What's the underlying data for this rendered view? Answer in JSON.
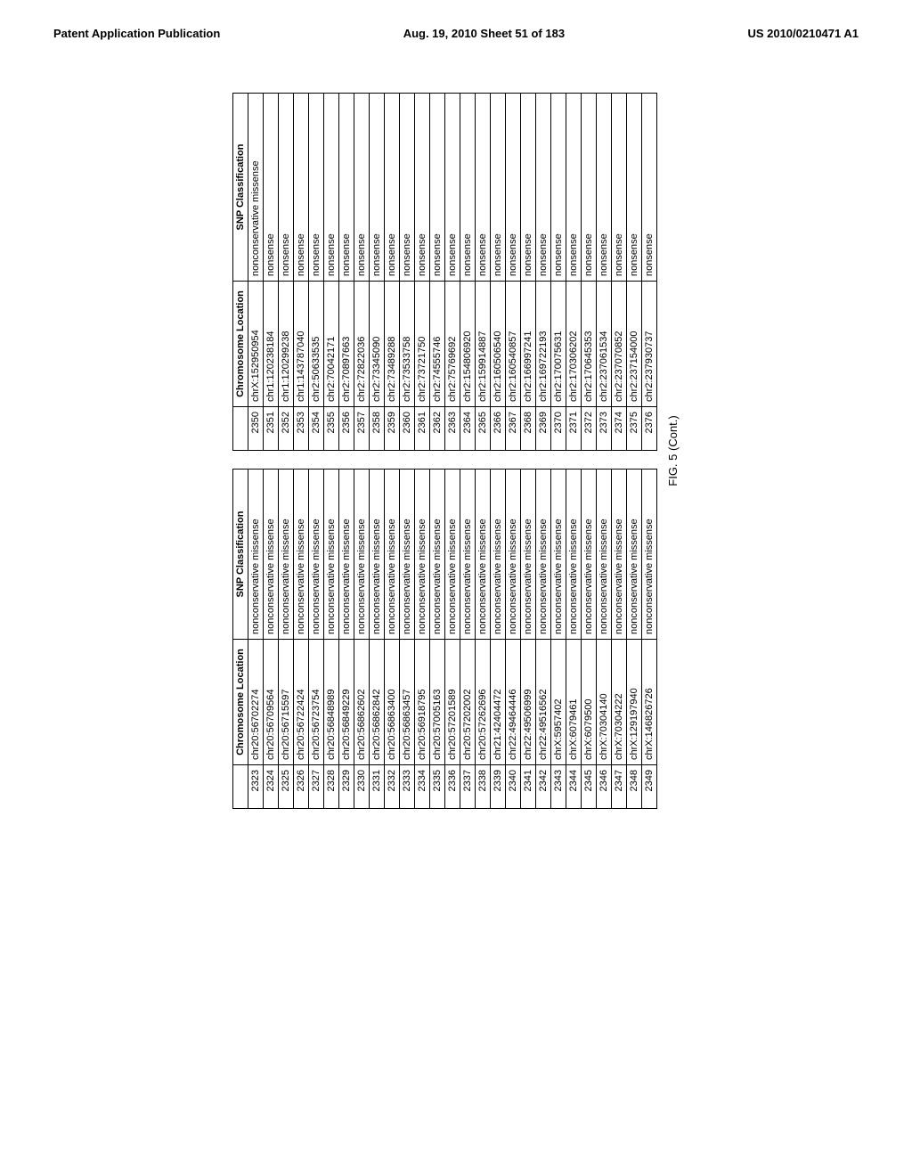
{
  "header": {
    "left": "Patent Application Publication",
    "center": "Aug. 19, 2010  Sheet 51 of 183",
    "right": "US 2010/0210471 A1"
  },
  "figure_caption": "FIG. 5 (Cont.)",
  "table_headers": {
    "index": "",
    "location": "Chromosome Location",
    "classification": "SNP Classification"
  },
  "table1": [
    {
      "idx": "2323",
      "loc": "chr20:56702274",
      "cls": "nonconservative missense"
    },
    {
      "idx": "2324",
      "loc": "chr20:56709564",
      "cls": "nonconservative missense"
    },
    {
      "idx": "2325",
      "loc": "chr20:56715597",
      "cls": "nonconservative missense"
    },
    {
      "idx": "2326",
      "loc": "chr20:56722424",
      "cls": "nonconservative missense"
    },
    {
      "idx": "2327",
      "loc": "chr20:56723754",
      "cls": "nonconservative missense"
    },
    {
      "idx": "2328",
      "loc": "chr20:56848989",
      "cls": "nonconservative missense"
    },
    {
      "idx": "2329",
      "loc": "chr20:56849229",
      "cls": "nonconservative missense"
    },
    {
      "idx": "2330",
      "loc": "chr20:56862602",
      "cls": "nonconservative missense"
    },
    {
      "idx": "2331",
      "loc": "chr20:56862842",
      "cls": "nonconservative missense"
    },
    {
      "idx": "2332",
      "loc": "chr20:56863400",
      "cls": "nonconservative missense"
    },
    {
      "idx": "2333",
      "loc": "chr20:56863457",
      "cls": "nonconservative missense"
    },
    {
      "idx": "2334",
      "loc": "chr20:56918795",
      "cls": "nonconservative missense"
    },
    {
      "idx": "2335",
      "loc": "chr20:57005163",
      "cls": "nonconservative missense"
    },
    {
      "idx": "2336",
      "loc": "chr20:57201589",
      "cls": "nonconservative missense"
    },
    {
      "idx": "2337",
      "loc": "chr20:57202002",
      "cls": "nonconservative missense"
    },
    {
      "idx": "2338",
      "loc": "chr20:57262696",
      "cls": "nonconservative missense"
    },
    {
      "idx": "2339",
      "loc": "chr21:42404472",
      "cls": "nonconservative missense"
    },
    {
      "idx": "2340",
      "loc": "chr22:49464446",
      "cls": "nonconservative missense"
    },
    {
      "idx": "2341",
      "loc": "chr22:49506999",
      "cls": "nonconservative missense"
    },
    {
      "idx": "2342",
      "loc": "chr22:49516562",
      "cls": "nonconservative missense"
    },
    {
      "idx": "2343",
      "loc": "chrX:5957402",
      "cls": "nonconservative missense"
    },
    {
      "idx": "2344",
      "loc": "chrX:6079461",
      "cls": "nonconservative missense"
    },
    {
      "idx": "2345",
      "loc": "chrX:6079500",
      "cls": "nonconservative missense"
    },
    {
      "idx": "2346",
      "loc": "chrX:70304140",
      "cls": "nonconservative missense"
    },
    {
      "idx": "2347",
      "loc": "chrX:70304222",
      "cls": "nonconservative missense"
    },
    {
      "idx": "2348",
      "loc": "chrX:129197940",
      "cls": "nonconservative missense"
    },
    {
      "idx": "2349",
      "loc": "chrX:146826726",
      "cls": "nonconservative missense"
    }
  ],
  "table2": [
    {
      "idx": "2350",
      "loc": "chrX:152950954",
      "cls": "nonconservative missense"
    },
    {
      "idx": "2351",
      "loc": "chr1:120238184",
      "cls": "nonsense"
    },
    {
      "idx": "2352",
      "loc": "chr1:120299238",
      "cls": "nonsense"
    },
    {
      "idx": "2353",
      "loc": "chr1:143787040",
      "cls": "nonsense"
    },
    {
      "idx": "2354",
      "loc": "chr2:50633535",
      "cls": "nonsense"
    },
    {
      "idx": "2355",
      "loc": "chr2:70042171",
      "cls": "nonsense"
    },
    {
      "idx": "2356",
      "loc": "chr2:70897663",
      "cls": "nonsense"
    },
    {
      "idx": "2357",
      "loc": "chr2:72822036",
      "cls": "nonsense"
    },
    {
      "idx": "2358",
      "loc": "chr2:73345090",
      "cls": "nonsense"
    },
    {
      "idx": "2359",
      "loc": "chr2:73489288",
      "cls": "nonsense"
    },
    {
      "idx": "2360",
      "loc": "chr2:73533758",
      "cls": "nonsense"
    },
    {
      "idx": "2361",
      "loc": "chr2:73721750",
      "cls": "nonsense"
    },
    {
      "idx": "2362",
      "loc": "chr2:74555746",
      "cls": "nonsense"
    },
    {
      "idx": "2363",
      "loc": "chr2:75769692",
      "cls": "nonsense"
    },
    {
      "idx": "2364",
      "loc": "chr2:154806920",
      "cls": "nonsense"
    },
    {
      "idx": "2365",
      "loc": "chr2:159914887",
      "cls": "nonsense"
    },
    {
      "idx": "2366",
      "loc": "chr2:160506540",
      "cls": "nonsense"
    },
    {
      "idx": "2367",
      "loc": "chr2:160540857",
      "cls": "nonsense"
    },
    {
      "idx": "2368",
      "loc": "chr2:166997241",
      "cls": "nonsense"
    },
    {
      "idx": "2369",
      "loc": "chr2:169722193",
      "cls": "nonsense"
    },
    {
      "idx": "2370",
      "loc": "chr2:170075631",
      "cls": "nonsense"
    },
    {
      "idx": "2371",
      "loc": "chr2:170306202",
      "cls": "nonsense"
    },
    {
      "idx": "2372",
      "loc": "chr2:170645353",
      "cls": "nonsense"
    },
    {
      "idx": "2373",
      "loc": "chr2:237061534",
      "cls": "nonsense"
    },
    {
      "idx": "2374",
      "loc": "chr2:237070852",
      "cls": "nonsense"
    },
    {
      "idx": "2375",
      "loc": "chr2:237154000",
      "cls": "nonsense"
    },
    {
      "idx": "2376",
      "loc": "chr2:237930737",
      "cls": "nonsense"
    }
  ]
}
